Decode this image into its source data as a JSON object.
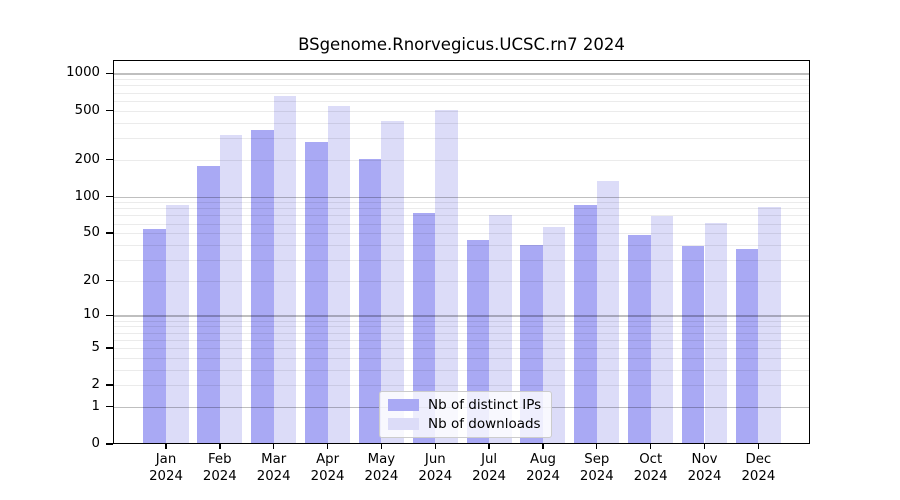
{
  "chart_data": {
    "type": "bar",
    "title": "BSgenome.Rnorvegicus.UCSC.rn7 2024",
    "categories": [
      "Jan",
      "Feb",
      "Mar",
      "Apr",
      "May",
      "Jun",
      "Jul",
      "Aug",
      "Sep",
      "Oct",
      "Nov",
      "Dec"
    ],
    "x_tick_second_line": "2024",
    "series": [
      {
        "name": "Nb of distinct IPs",
        "color": "#a9a9f4",
        "values": [
          54,
          176,
          345,
          280,
          202,
          73,
          44,
          40,
          85,
          48,
          39,
          37
        ]
      },
      {
        "name": "Nb of downloads",
        "color": "#dcdcf8",
        "values": [
          85,
          316,
          656,
          544,
          410,
          505,
          70,
          56,
          134,
          69,
          61,
          82
        ]
      }
    ],
    "xlabel": "",
    "ylabel": "",
    "yscale": "log1p",
    "ylim": [
      0,
      1285
    ],
    "yticks": [
      0,
      1,
      2,
      5,
      10,
      20,
      50,
      100,
      200,
      500,
      1000
    ],
    "grid": true,
    "legend_position": "lower center"
  }
}
